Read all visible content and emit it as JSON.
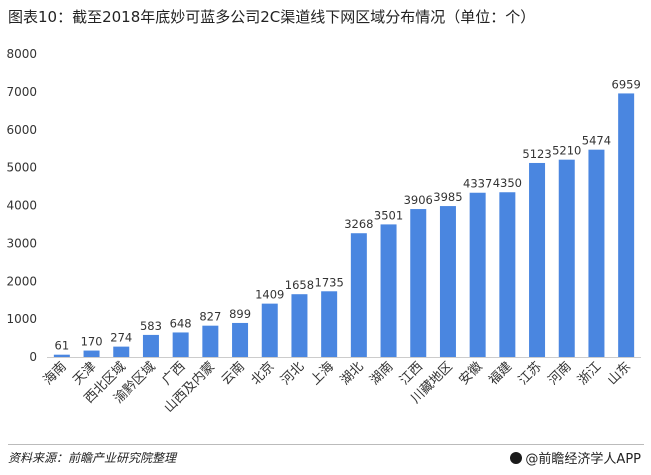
{
  "title": "图表10：截至2018年底妙可蓝多公司2C渠道线下网区域分布情况（单位：个）",
  "source": "资料来源：前瞻产业研究院整理",
  "brand": "@前瞻经济学人APP",
  "colors": {
    "bar": "#4a86e0",
    "axis": "#cccccc",
    "text": "#333333"
  },
  "chart_data": {
    "type": "bar",
    "title": "图表10：截至2018年底妙可蓝多公司2C渠道线下网区域分布情况（单位：个）",
    "xlabel": "",
    "ylabel": "",
    "ylim": [
      0,
      8000
    ],
    "yticks": [
      0,
      1000,
      2000,
      3000,
      4000,
      5000,
      6000,
      7000,
      8000
    ],
    "grid": false,
    "categories": [
      "海南",
      "天津",
      "西北区域",
      "渝黔区域",
      "广西",
      "山西及内蒙",
      "云南",
      "北京",
      "河北",
      "上海",
      "湖北",
      "湖南",
      "江西",
      "川藏地区",
      "安徽",
      "福建",
      "江苏",
      "河南",
      "浙江",
      "山东"
    ],
    "values": [
      61,
      170,
      274,
      583,
      648,
      827,
      899,
      1409,
      1658,
      1735,
      3268,
      3501,
      3906,
      3985,
      4337,
      4350,
      5123,
      5210,
      5474,
      6959
    ]
  }
}
